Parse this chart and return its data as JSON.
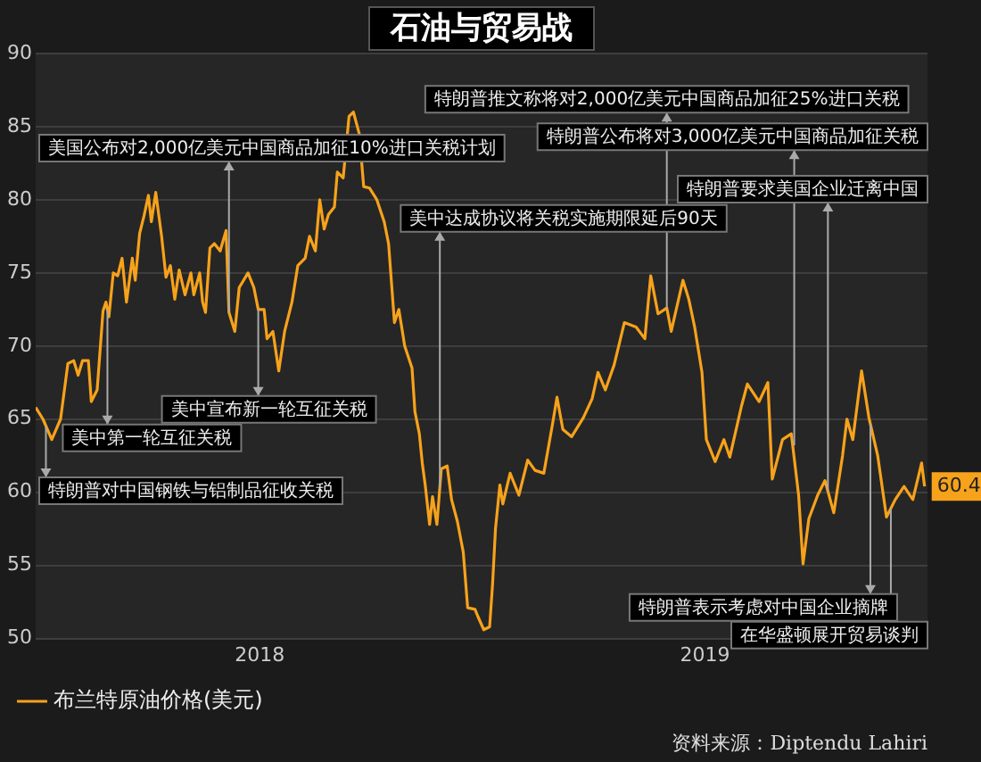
{
  "chart_data": {
    "type": "line",
    "title": "石油与贸易战",
    "x": [
      "2018-03-01",
      "2018-03-06",
      "2018-03-12",
      "2018-03-18",
      "2018-03-23",
      "2018-03-27",
      "2018-03-30",
      "2018-04-02",
      "2018-04-06",
      "2018-04-08",
      "2018-04-12",
      "2018-04-16",
      "2018-04-18",
      "2018-04-20",
      "2018-04-23",
      "2018-04-26",
      "2018-04-29",
      "2018-05-02",
      "2018-05-06",
      "2018-05-08",
      "2018-05-11",
      "2018-05-14",
      "2018-05-17",
      "2018-05-19",
      "2018-05-22",
      "2018-05-24",
      "2018-05-26",
      "2018-05-29",
      "2018-06-01",
      "2018-06-04",
      "2018-06-07",
      "2018-06-11",
      "2018-06-15",
      "2018-06-17",
      "2018-06-21",
      "2018-06-23",
      "2018-06-25",
      "2018-06-28",
      "2018-07-01",
      "2018-07-05",
      "2018-07-09",
      "2018-07-11",
      "2018-07-15",
      "2018-07-18",
      "2018-07-24",
      "2018-07-28",
      "2018-07-31",
      "2018-08-04",
      "2018-08-06",
      "2018-08-10",
      "2018-08-14",
      "2018-08-18",
      "2018-08-23",
      "2018-08-27",
      "2018-09-01",
      "2018-09-04",
      "2018-09-08",
      "2018-09-11",
      "2018-09-14",
      "2018-09-17",
      "2018-09-21",
      "2018-09-23",
      "2018-09-27",
      "2018-10-01",
      "2018-10-04",
      "2018-10-08",
      "2018-10-11",
      "2018-10-15",
      "2018-10-20",
      "2018-10-25",
      "2018-10-28",
      "2018-11-01",
      "2018-11-04",
      "2018-11-08",
      "2018-11-13",
      "2018-11-15",
      "2018-11-18",
      "2018-11-20",
      "2018-11-22",
      "2018-11-25",
      "2018-11-27",
      "2018-11-30",
      "2018-12-03",
      "2018-12-07",
      "2018-12-10",
      "2018-12-14",
      "2018-12-18",
      "2018-12-21",
      "2018-12-26",
      "2018-12-28",
      "2019-01-01",
      "2019-01-05",
      "2019-01-07",
      "2019-01-09",
      "2019-01-12",
      "2019-01-14",
      "2019-01-19",
      "2019-01-25",
      "2019-01-31",
      "2019-02-05",
      "2019-02-11",
      "2019-02-17",
      "2019-02-20",
      "2019-02-24",
      "2019-03-02",
      "2019-03-10",
      "2019-03-16",
      "2019-03-20",
      "2019-03-25",
      "2019-03-31",
      "2019-04-07",
      "2019-04-15",
      "2019-04-21",
      "2019-04-25",
      "2019-04-30",
      "2019-05-06",
      "2019-05-09",
      "2019-05-17",
      "2019-05-21",
      "2019-05-25",
      "2019-05-30",
      "2019-06-02",
      "2019-06-08",
      "2019-06-14",
      "2019-06-18",
      "2019-06-26",
      "2019-06-30",
      "2019-07-08",
      "2019-07-14",
      "2019-07-17",
      "2019-07-24",
      "2019-07-30",
      "2019-08-04",
      "2019-08-07",
      "2019-08-11",
      "2019-08-17",
      "2019-08-22",
      "2019-08-28",
      "2019-09-03",
      "2019-09-06",
      "2019-09-10",
      "2019-09-16",
      "2019-09-21",
      "2019-09-27",
      "2019-10-03",
      "2019-10-09",
      "2019-10-15",
      "2019-10-21",
      "2019-10-27",
      "2019-10-29"
    ],
    "series": [
      {
        "name": "布兰特原油价格(美元)",
        "color": "#f7a21b",
        "values": [
          65.8,
          65,
          63.6,
          65,
          68.8,
          69,
          68,
          69,
          69,
          66.2,
          67,
          72.4,
          73,
          72,
          75,
          74.8,
          76,
          73,
          76,
          74.5,
          77.7,
          78.9,
          80.3,
          78.5,
          80.5,
          79,
          77.5,
          74.7,
          75.5,
          73.2,
          75.2,
          73.5,
          75,
          73.5,
          75,
          73,
          72.3,
          76.7,
          77,
          76.5,
          77.9,
          72.3,
          71,
          74,
          75,
          74,
          72.5,
          72.5,
          70.5,
          71,
          68.3,
          71,
          73,
          75.5,
          76,
          77.5,
          76.5,
          80,
          78,
          79,
          79.5,
          81.9,
          81.5,
          85.7,
          86,
          84.5,
          80.9,
          80.8,
          80,
          78.5,
          77,
          71.6,
          72.5,
          70,
          68.5,
          65.5,
          64,
          62,
          60.5,
          57.8,
          59.7,
          57.8,
          61.6,
          61.8,
          59.5,
          58,
          55.9,
          52.1,
          52,
          51.5,
          50.6,
          50.8,
          53.7,
          57.5,
          60.5,
          59.2,
          61.3,
          59.8,
          62.2,
          61.5,
          61.3,
          64.7,
          66.5,
          64.3,
          63.8,
          65.1,
          66.4,
          68.2,
          67,
          68.7,
          71.6,
          71.3,
          70.5,
          74.8,
          72.2,
          72.6,
          71,
          74.5,
          73.2,
          71.3,
          68.2,
          63.6,
          62.1,
          63.6,
          62.4,
          65.9,
          67.4,
          66.2,
          67.5,
          60.9,
          63.6,
          64,
          59.8,
          55.1,
          58.2,
          59.8,
          60.8,
          58.6,
          62.5,
          65,
          63.6,
          68.3,
          65.1,
          62.5,
          58.3,
          59.5,
          60.4,
          59.5,
          62,
          60.4
        ],
        "value_labels": [
          null,
          null,
          null,
          null,
          null,
          null,
          null,
          null,
          null,
          null,
          null,
          null,
          null,
          null,
          null,
          null,
          null,
          null,
          null,
          null,
          null,
          null,
          null,
          null,
          null,
          null,
          null,
          null,
          null,
          null,
          null,
          null,
          null,
          null,
          null,
          null,
          null,
          null,
          null,
          null,
          null,
          null,
          null,
          null,
          null,
          null,
          null,
          null,
          null,
          null,
          null,
          null,
          null,
          null,
          null,
          null,
          null,
          null,
          null,
          null,
          null,
          null,
          null,
          null,
          null,
          null,
          null,
          null,
          null,
          null,
          null,
          null,
          null,
          null,
          null,
          null,
          null,
          null,
          null,
          null,
          null,
          null,
          null,
          null,
          null,
          null,
          null,
          null,
          null,
          null,
          null,
          null,
          null,
          null,
          null,
          null,
          null,
          null,
          null,
          null,
          null,
          null,
          null,
          null,
          null,
          null,
          null,
          null,
          null,
          null,
          null,
          null,
          null,
          null,
          null,
          null,
          null,
          null,
          null,
          null,
          null,
          null,
          null,
          null,
          null,
          null,
          null,
          null,
          null,
          null,
          null,
          null,
          null,
          null,
          null,
          null,
          null,
          null,
          null,
          null,
          null,
          null,
          null,
          null,
          null,
          null,
          null,
          null,
          null,
          "60.4"
        ]
      }
    ],
    "xlim": [
      "2018-03-01",
      "2019-10-31"
    ],
    "xticks": [
      {
        "value": "2018-08-01",
        "label": "2018"
      },
      {
        "value": "2019-06-01",
        "label": "2019"
      }
    ],
    "ylim": [
      50,
      90
    ],
    "yticks": [
      50,
      55,
      60,
      65,
      70,
      75,
      80,
      85,
      90
    ],
    "grid": "y",
    "legend": "bottom left",
    "marker": "none",
    "line_style": "solid",
    "annotations": [
      {
        "text": "特朗普对中国钢铁与铝制品征收关税",
        "x": "2018-03-08",
        "y": 64.5
      },
      {
        "text": "美中第一轮互征关税",
        "x": "2018-04-19",
        "y": 72.5
      },
      {
        "text": "美国公布对2,000亿美元中国商品加征10%进口关税计划",
        "x": "2018-07-11",
        "y": 72.3
      },
      {
        "text": "美中宣布新一轮互征关税",
        "x": "2018-07-31",
        "y": 72.5
      },
      {
        "text": "美中达成协议将关税实施期限延后90天",
        "x": "2018-12-02",
        "y": 60.3
      },
      {
        "text": "特朗普推文称将对2,000亿美元中国商品加征25%进口关税",
        "x": "2019-05-06",
        "y": 72.6
      },
      {
        "text": "特朗普公布将对3,000亿美元中国商品加征关税",
        "x": "2019-08-01",
        "y": 63.2
      },
      {
        "text": "特朗普要求美国企业迁离中国",
        "x": "2019-08-24",
        "y": 60.1
      },
      {
        "text": "特朗普表示考虑对中国企业摘牌",
        "x": "2019-09-22",
        "y": 64.7
      },
      {
        "text": "在华盛顿展开贸易谈判",
        "x": "2019-10-06",
        "y": 58.9
      },
      "资料来源：Diptendu Lahiri"
    ]
  }
}
